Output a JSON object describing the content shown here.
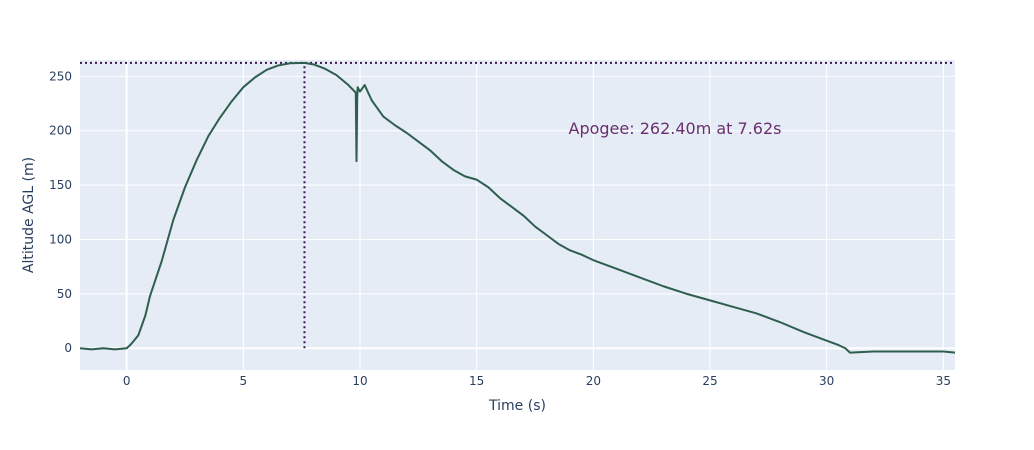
{
  "chart_data": {
    "type": "line",
    "title": "",
    "xlabel": "Time (s)",
    "ylabel": "Altitude AGL (m)",
    "xlim": [
      -2,
      35.5
    ],
    "ylim": [
      -20,
      265
    ],
    "xticks": [
      0,
      5,
      10,
      15,
      20,
      25,
      30,
      35
    ],
    "yticks": [
      0,
      50,
      100,
      150,
      200,
      250
    ],
    "grid": true,
    "legend": "none",
    "colors": {
      "background": "#e5ecf6",
      "grid": "#ffffff",
      "series": "#2e5e4e",
      "apogee": "#3d1552",
      "annotation": "#6b2f6e",
      "text": "#2a3f5f"
    },
    "series": [
      {
        "x": [
          -2,
          -1.5,
          -1,
          -0.5,
          0,
          0.2,
          0.5,
          0.8,
          1.0,
          1.5,
          2.0,
          2.5,
          3.0,
          3.5,
          4.0,
          4.5,
          5.0,
          5.5,
          6.0,
          6.5,
          7.0,
          7.62,
          8.0,
          8.5,
          9.0,
          9.5,
          9.82,
          9.85,
          9.88,
          9.9,
          10.0,
          10.2,
          10.5,
          11.0,
          11.5,
          12.0,
          12.5,
          13.0,
          13.5,
          14.0,
          14.5,
          15.0,
          15.5,
          16.0,
          16.5,
          17.0,
          17.5,
          18.0,
          18.5,
          19.0,
          19.5,
          20.0,
          21.0,
          22.0,
          23.0,
          24.0,
          25.0,
          26.0,
          27.0,
          28.0,
          29.0,
          30.0,
          30.5,
          30.8,
          31.0,
          32.0,
          33.0,
          34.0,
          35.0,
          35.5
        ],
        "y": [
          0,
          -1,
          0,
          -1,
          0,
          4,
          12,
          30,
          48,
          80,
          118,
          148,
          173,
          195,
          212,
          227,
          240,
          249,
          256,
          260,
          262,
          262.4,
          261,
          257,
          251,
          242,
          235,
          172,
          230,
          240,
          236,
          242,
          228,
          213,
          205,
          198,
          190,
          182,
          172,
          164,
          158,
          155,
          148,
          138,
          130,
          122,
          112,
          104,
          96,
          90,
          86,
          81,
          73,
          65,
          57,
          50,
          44,
          38,
          32,
          24,
          15,
          7,
          3,
          0,
          -4,
          -3,
          -3,
          -3,
          -3,
          -4
        ]
      }
    ],
    "apogee": {
      "x": 7.62,
      "y": 262.4
    },
    "annotation": "Apogee: 262.40m at 7.62s"
  }
}
